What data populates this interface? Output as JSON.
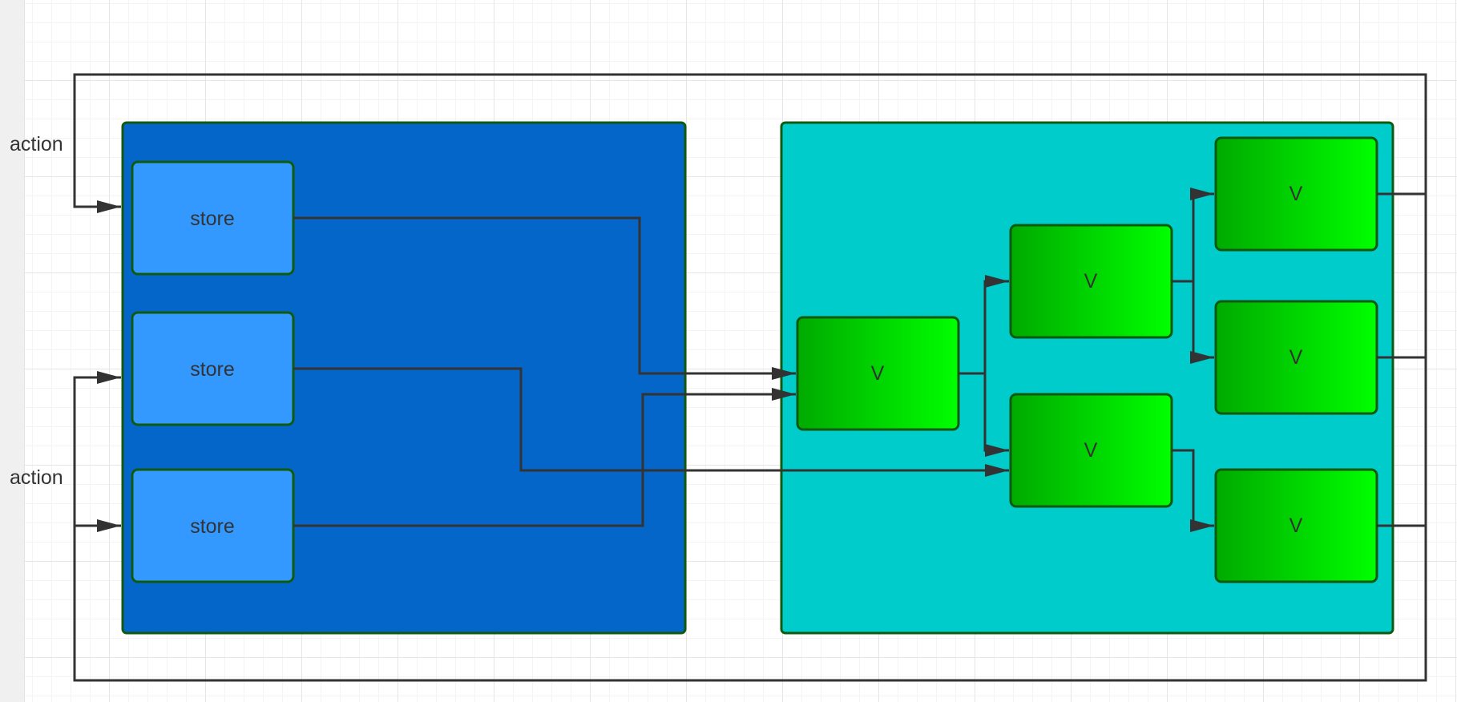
{
  "diagram": {
    "labels": {
      "action_top": "action",
      "action_bottom": "action"
    },
    "store_group": {
      "fill": "#0466C8",
      "stores": [
        {
          "label": "store"
        },
        {
          "label": "store"
        },
        {
          "label": "store"
        }
      ],
      "store_fill": "#3399FF"
    },
    "view_group": {
      "fill": "#00CCCC",
      "views": [
        {
          "label": "V"
        },
        {
          "label": "V"
        },
        {
          "label": "V"
        },
        {
          "label": "V"
        },
        {
          "label": "V"
        },
        {
          "label": "V"
        }
      ],
      "view_fill_from": "#00AA00",
      "view_fill_to": "#00FF00"
    },
    "colors": {
      "border": "#0F5A0F",
      "edge": "#333333"
    }
  }
}
